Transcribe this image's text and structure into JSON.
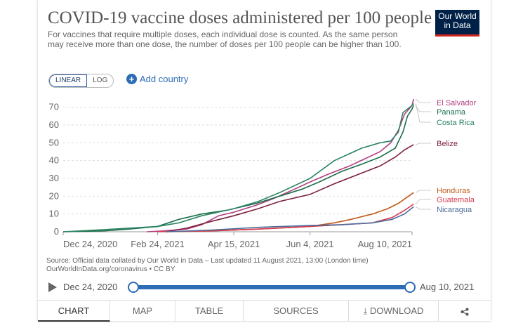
{
  "header": {
    "title": "COVID-19 vaccine doses administered per 100 people",
    "subtitle": "For vaccines that require multiple doses, each individual dose is counted. As the same person may receive more than one dose, the number of doses per 100 people can be higher than 100.",
    "logo_line1": "Our World",
    "logo_line2": "in Data"
  },
  "controls": {
    "linear_label": "LINEAR",
    "log_label": "LOG",
    "add_country_label": "Add country"
  },
  "chart_data": {
    "type": "line",
    "title": "COVID-19 vaccine doses administered per 100 people",
    "xlabel": "",
    "ylabel": "",
    "ylim": [
      0,
      75
    ],
    "yticks": [
      0,
      10,
      20,
      30,
      40,
      50,
      60,
      70
    ],
    "xticks": [
      "Dec 24, 2020",
      "Feb 24, 2021",
      "Apr 15, 2021",
      "Jun 4, 2021",
      "Aug 10, 2021"
    ],
    "x_range": [
      "Dec 24, 2020",
      "Aug 10, 2021"
    ],
    "grid": "horizontal dashed",
    "legend": "line-end labels, right",
    "series": [
      {
        "name": "El Salvador",
        "color": "#b13d7f",
        "points": [
          [
            "2021-02-17",
            0
          ],
          [
            "2021-03-01",
            0.5
          ],
          [
            "2021-03-15",
            1.5
          ],
          [
            "2021-03-25",
            4
          ],
          [
            "2021-04-05",
            9
          ],
          [
            "2021-04-15",
            11
          ],
          [
            "2021-04-30",
            15
          ],
          [
            "2021-05-12",
            19
          ],
          [
            "2021-05-25",
            24
          ],
          [
            "2021-06-04",
            28
          ],
          [
            "2021-06-15",
            32
          ],
          [
            "2021-06-30",
            37
          ],
          [
            "2021-07-10",
            41
          ],
          [
            "2021-07-20",
            45
          ],
          [
            "2021-07-27",
            50
          ],
          [
            "2021-08-01",
            57
          ],
          [
            "2021-08-05",
            66
          ],
          [
            "2021-08-10",
            71
          ],
          [
            "2021-08-11",
            74.6
          ]
        ]
      },
      {
        "name": "Panama",
        "color": "#1c6e4a",
        "points": [
          [
            "2020-12-24",
            0
          ],
          [
            "2021-01-20",
            0.5
          ],
          [
            "2021-02-05",
            1.5
          ],
          [
            "2021-02-24",
            3
          ],
          [
            "2021-03-10",
            7
          ],
          [
            "2021-03-25",
            10
          ],
          [
            "2021-04-10",
            12
          ],
          [
            "2021-04-30",
            16
          ],
          [
            "2021-05-15",
            20
          ],
          [
            "2021-05-30",
            24
          ],
          [
            "2021-06-10",
            28
          ],
          [
            "2021-06-25",
            34
          ],
          [
            "2021-07-08",
            38
          ],
          [
            "2021-07-20",
            42
          ],
          [
            "2021-07-30",
            47
          ],
          [
            "2021-08-04",
            56
          ],
          [
            "2021-08-07",
            65
          ],
          [
            "2021-08-10",
            69
          ],
          [
            "2021-08-11",
            71
          ]
        ]
      },
      {
        "name": "Costa Rica",
        "color": "#2b8465",
        "points": [
          [
            "2020-12-24",
            0
          ],
          [
            "2021-01-15",
            1
          ],
          [
            "2021-02-05",
            2
          ],
          [
            "2021-02-24",
            3
          ],
          [
            "2021-03-10",
            5
          ],
          [
            "2021-03-25",
            9
          ],
          [
            "2021-04-15",
            13
          ],
          [
            "2021-05-01",
            17
          ],
          [
            "2021-05-15",
            22
          ],
          [
            "2021-06-04",
            30
          ],
          [
            "2021-06-20",
            40
          ],
          [
            "2021-07-08",
            47
          ],
          [
            "2021-07-20",
            50
          ],
          [
            "2021-07-27",
            51
          ],
          [
            "2021-08-01",
            56
          ],
          [
            "2021-08-04",
            67
          ],
          [
            "2021-08-10",
            71
          ],
          [
            "2021-08-11",
            72
          ]
        ]
      },
      {
        "name": "Belize",
        "color": "#7b1f3b",
        "points": [
          [
            "2021-03-01",
            0
          ],
          [
            "2021-03-15",
            2
          ],
          [
            "2021-04-01",
            6
          ],
          [
            "2021-04-15",
            9
          ],
          [
            "2021-05-01",
            13
          ],
          [
            "2021-05-15",
            17
          ],
          [
            "2021-06-04",
            21
          ],
          [
            "2021-06-20",
            27
          ],
          [
            "2021-07-08",
            33
          ],
          [
            "2021-07-20",
            37
          ],
          [
            "2021-07-30",
            42
          ],
          [
            "2021-08-05",
            46
          ],
          [
            "2021-08-11",
            49
          ]
        ]
      },
      {
        "name": "Honduras",
        "color": "#c05917",
        "points": [
          [
            "2021-03-01",
            0
          ],
          [
            "2021-04-01",
            0.5
          ],
          [
            "2021-05-01",
            1.5
          ],
          [
            "2021-06-04",
            3
          ],
          [
            "2021-06-20",
            5
          ],
          [
            "2021-07-01",
            7
          ],
          [
            "2021-07-15",
            10
          ],
          [
            "2021-07-25",
            13
          ],
          [
            "2021-08-01",
            16
          ],
          [
            "2021-08-11",
            22
          ]
        ]
      },
      {
        "name": "Guatemala",
        "color": "#d73c50",
        "points": [
          [
            "2021-02-24",
            0
          ],
          [
            "2021-04-01",
            0.5
          ],
          [
            "2021-05-01",
            1.5
          ],
          [
            "2021-06-04",
            3
          ],
          [
            "2021-06-25",
            4
          ],
          [
            "2021-07-15",
            5
          ],
          [
            "2021-07-28",
            8
          ],
          [
            "2021-08-05",
            12
          ],
          [
            "2021-08-11",
            15.5
          ]
        ]
      },
      {
        "name": "Nicaragua",
        "color": "#4c6a9c",
        "points": [
          [
            "2021-03-02",
            0
          ],
          [
            "2021-04-01",
            1
          ],
          [
            "2021-05-01",
            2.5
          ],
          [
            "2021-06-04",
            3.5
          ],
          [
            "2021-06-25",
            4
          ],
          [
            "2021-07-15",
            5
          ],
          [
            "2021-07-28",
            7
          ],
          [
            "2021-08-05",
            10
          ],
          [
            "2021-08-11",
            14
          ]
        ]
      }
    ]
  },
  "footer": {
    "source_line1": "Source: Official data collated by Our World in Data – Last updated 11 August 2021, 13:00 (London time)",
    "source_line2": "OurWorldInData.org/coronavirus • CC BY"
  },
  "timeline": {
    "start_label": "Dec 24, 2020",
    "end_label": "Aug 10, 2021"
  },
  "tabs": [
    {
      "label": "CHART"
    },
    {
      "label": "MAP"
    },
    {
      "label": "TABLE"
    },
    {
      "label": "SOURCES"
    },
    {
      "label": "DOWNLOAD"
    }
  ]
}
